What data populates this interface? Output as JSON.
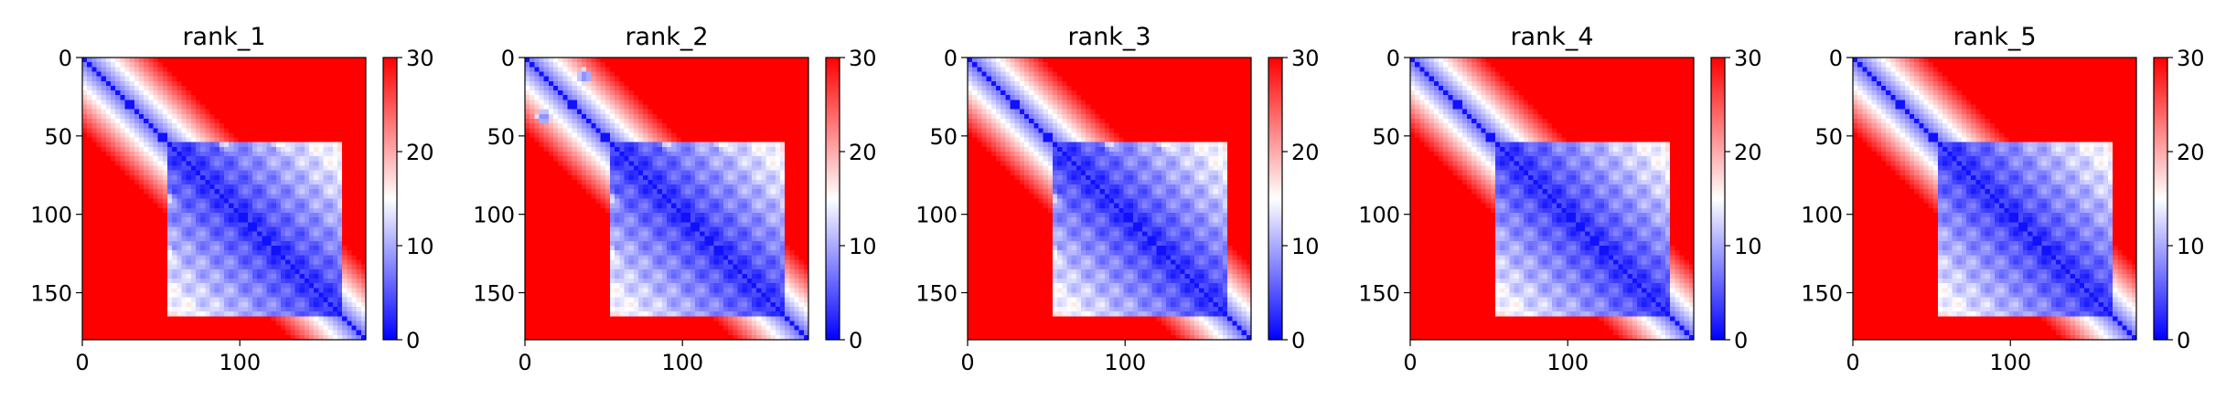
{
  "chart_data": [
    {
      "type": "heatmap",
      "title": "rank_1",
      "xlim": [
        0,
        180
      ],
      "ylim": [
        180,
        0
      ],
      "xticks": [
        0,
        100
      ],
      "xtick_labels": [
        "0",
        "100"
      ],
      "yticks": [
        0,
        50,
        100,
        150
      ],
      "ytick_labels": [
        "0",
        "50",
        "100",
        "150"
      ],
      "colorbar": {
        "range": [
          0,
          30
        ],
        "ticks": [
          0,
          10,
          20,
          30
        ],
        "tick_labels": [
          "0",
          "10",
          "20",
          "30"
        ],
        "colormap": "bwr"
      },
      "features": {
        "blobs": [
          [
            90,
            20,
            40,
            8
          ],
          [
            125,
            20,
            40,
            8
          ]
        ],
        "dots": []
      }
    },
    {
      "type": "heatmap",
      "title": "rank_2",
      "xlim": [
        0,
        180
      ],
      "ylim": [
        180,
        0
      ],
      "xticks": [
        0,
        100
      ],
      "xtick_labels": [
        "0",
        "100"
      ],
      "yticks": [
        0,
        50,
        100,
        150
      ],
      "ytick_labels": [
        "0",
        "50",
        "100",
        "150"
      ],
      "colorbar": {
        "range": [
          0,
          30
        ],
        "ticks": [
          0,
          10,
          20,
          30
        ],
        "tick_labels": [
          "0",
          "10",
          "20",
          "30"
        ],
        "colormap": "bwr"
      },
      "features": {
        "blobs": [
          [
            90,
            20,
            40,
            8
          ],
          [
            125,
            20,
            40,
            8
          ]
        ],
        "dots": [
          [
            12,
            38,
            5
          ],
          [
            38,
            12,
            5
          ]
        ]
      }
    },
    {
      "type": "heatmap",
      "title": "rank_3",
      "xlim": [
        0,
        180
      ],
      "ylim": [
        180,
        0
      ],
      "xticks": [
        0,
        100
      ],
      "xtick_labels": [
        "0",
        "100"
      ],
      "yticks": [
        0,
        50,
        100,
        150
      ],
      "ytick_labels": [
        "0",
        "50",
        "100",
        "150"
      ],
      "colorbar": {
        "range": [
          0,
          30
        ],
        "ticks": [
          0,
          10,
          20,
          30
        ],
        "tick_labels": [
          "0",
          "10",
          "20",
          "30"
        ],
        "colormap": "bwr"
      },
      "features": {
        "blobs": [
          [
            90,
            20,
            40,
            8
          ],
          [
            125,
            20,
            40,
            8
          ]
        ],
        "dots": []
      }
    },
    {
      "type": "heatmap",
      "title": "rank_4",
      "xlim": [
        0,
        180
      ],
      "ylim": [
        180,
        0
      ],
      "xticks": [
        0,
        100
      ],
      "xtick_labels": [
        "0",
        "100"
      ],
      "yticks": [
        0,
        50,
        100,
        150
      ],
      "ytick_labels": [
        "0",
        "50",
        "100",
        "150"
      ],
      "colorbar": {
        "range": [
          0,
          30
        ],
        "ticks": [
          0,
          10,
          20,
          30
        ],
        "tick_labels": [
          "0",
          "10",
          "20",
          "30"
        ],
        "colormap": "bwr"
      },
      "features": {
        "blobs": [
          [
            87,
            18,
            36,
            6
          ],
          [
            125,
            18,
            36,
            6
          ]
        ],
        "dots": []
      }
    },
    {
      "type": "heatmap",
      "title": "rank_5",
      "xlim": [
        0,
        180
      ],
      "ylim": [
        180,
        0
      ],
      "xticks": [
        0,
        100
      ],
      "xtick_labels": [
        "0",
        "100"
      ],
      "yticks": [
        0,
        50,
        100,
        150
      ],
      "ytick_labels": [
        "0",
        "50",
        "100",
        "150"
      ],
      "colorbar": {
        "range": [
          0,
          30
        ],
        "ticks": [
          0,
          10,
          20,
          30
        ],
        "tick_labels": [
          "0",
          "10",
          "20",
          "30"
        ],
        "colormap": "bwr"
      },
      "features": {
        "blobs": [
          [
            87,
            18,
            36,
            6
          ],
          [
            125,
            18,
            36,
            6
          ]
        ],
        "dots": []
      }
    }
  ]
}
